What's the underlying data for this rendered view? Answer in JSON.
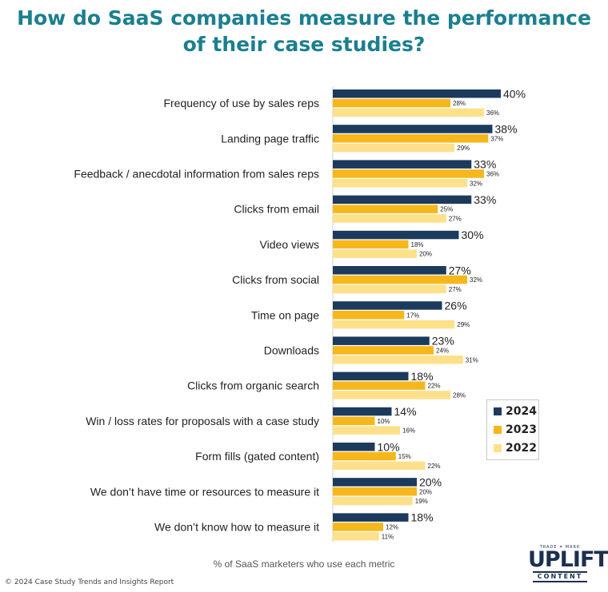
{
  "colors": {
    "title": "#1b7f8e",
    "y2024": "#1c3a5c",
    "y2023": "#f6b71c",
    "y2022": "#fde08a",
    "text": "#222222"
  },
  "title_line1": "How do SaaS companies measure the performance",
  "title_line2": "of their case studies?",
  "axis_note": "% of SaaS marketers who use each metric",
  "source": "© 2024 Case Study Trends and Insights Report",
  "logo": {
    "trademark": "TRADE ✦ MARK",
    "brand": "UPLIFT",
    "sub": "CONTENT"
  },
  "chart_data": {
    "type": "bar",
    "orientation": "horizontal",
    "title": "How do SaaS companies measure the performance of their case studies?",
    "xlabel": "% of SaaS marketers who use each metric",
    "categories": [
      "Frequency of use by sales reps",
      "Landing page traffic",
      "Feedback / anecdotal information from sales reps",
      "Clicks from email",
      "Video views",
      "Clicks from social",
      "Time on page",
      "Downloads",
      "Clicks from organic search",
      "Win / loss rates for proposals with a case study",
      "Form fills (gated content)",
      "We don’t have time or resources to measure it",
      "We don’t know how to measure it"
    ],
    "series": [
      {
        "name": "2024",
        "values": [
          40,
          38,
          33,
          33,
          30,
          27,
          26,
          23,
          18,
          14,
          10,
          20,
          18
        ]
      },
      {
        "name": "2023",
        "values": [
          28,
          37,
          36,
          25,
          18,
          32,
          17,
          24,
          22,
          10,
          15,
          20,
          12
        ]
      },
      {
        "name": "2022",
        "values": [
          36,
          29,
          32,
          27,
          20,
          27,
          29,
          31,
          28,
          16,
          22,
          19,
          11
        ]
      }
    ],
    "value_suffix": "%",
    "legend_position": "right",
    "grid": false
  }
}
